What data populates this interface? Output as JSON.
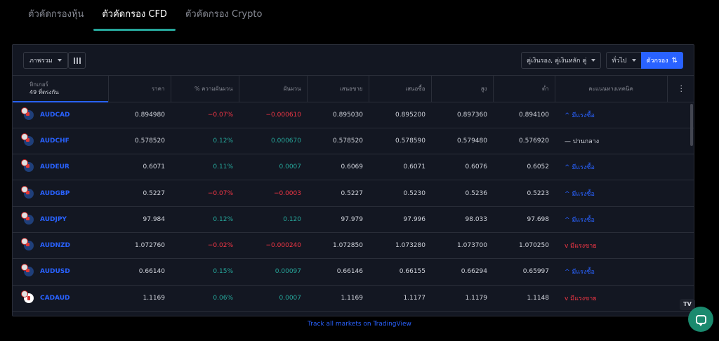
{
  "tabs": [
    {
      "label": "ตัวคัดกรองหุ้น",
      "active": false
    },
    {
      "label": "ตัวคัดกรอง CFD",
      "active": true
    },
    {
      "label": "ตัวคัดกรอง Crypto",
      "active": false
    }
  ],
  "toolbar": {
    "view_select": "ภาพรวม",
    "pair_select": "คู่เงินรอง, คู่เงินหลัก คู่",
    "general_select": "ทั่วไป",
    "filter_label": "ตัวกรอง"
  },
  "table": {
    "headers": {
      "ticker_line1": "ทิกเกอร์",
      "ticker_line2": "49 ที่ตรงกัน",
      "price": "ราคา",
      "change_pct": "% ความผันผวน",
      "change": "ผันผวน",
      "bid": "เสนอขาย",
      "ask": "เสนอซื้อ",
      "high": "สูง",
      "low": "ต่ำ",
      "technical": "คะแนนทางเทคนิค"
    },
    "rows": [
      {
        "ticker": "AUDCAD",
        "flag": "au",
        "price": "0.894980",
        "change_pct": "−0.07%",
        "change": "−0.000610",
        "dir": "neg",
        "bid": "0.895030",
        "ask": "0.895200",
        "high": "0.897360",
        "low": "0.894100",
        "rating": "^ มีแรงซื้อ",
        "rating_type": "buy"
      },
      {
        "ticker": "AUDCHF",
        "flag": "au",
        "price": "0.578520",
        "change_pct": "0.12%",
        "change": "0.000670",
        "dir": "pos",
        "bid": "0.578520",
        "ask": "0.578590",
        "high": "0.579480",
        "low": "0.576920",
        "rating": "— ปานกลาง",
        "rating_type": "neutral"
      },
      {
        "ticker": "AUDEUR",
        "flag": "au",
        "price": "0.6071",
        "change_pct": "0.11%",
        "change": "0.0007",
        "dir": "pos",
        "bid": "0.6069",
        "ask": "0.6071",
        "high": "0.6076",
        "low": "0.6052",
        "rating": "^ มีแรงซื้อ",
        "rating_type": "buy"
      },
      {
        "ticker": "AUDGBP",
        "flag": "au",
        "price": "0.5227",
        "change_pct": "−0.07%",
        "change": "−0.0003",
        "dir": "neg",
        "bid": "0.5227",
        "ask": "0.5230",
        "high": "0.5236",
        "low": "0.5223",
        "rating": "^ มีแรงซื้อ",
        "rating_type": "buy"
      },
      {
        "ticker": "AUDJPY",
        "flag": "au",
        "price": "97.984",
        "change_pct": "0.12%",
        "change": "0.120",
        "dir": "pos",
        "bid": "97.979",
        "ask": "97.996",
        "high": "98.033",
        "low": "97.698",
        "rating": "^ มีแรงซื้อ",
        "rating_type": "buy"
      },
      {
        "ticker": "AUDNZD",
        "flag": "au",
        "price": "1.072760",
        "change_pct": "−0.02%",
        "change": "−0.000240",
        "dir": "neg",
        "bid": "1.072850",
        "ask": "1.073280",
        "high": "1.073700",
        "low": "1.070250",
        "rating": "v มีแรงขาย",
        "rating_type": "sell"
      },
      {
        "ticker": "AUDUSD",
        "flag": "au",
        "price": "0.66140",
        "change_pct": "0.15%",
        "change": "0.00097",
        "dir": "pos",
        "bid": "0.66146",
        "ask": "0.66155",
        "high": "0.66294",
        "low": "0.65997",
        "rating": "^ มีแรงซื้อ",
        "rating_type": "buy"
      },
      {
        "ticker": "CADAUD",
        "flag": "ca",
        "price": "1.1169",
        "change_pct": "0.06%",
        "change": "0.0007",
        "dir": "pos",
        "bid": "1.1169",
        "ask": "1.1177",
        "high": "1.1179",
        "low": "1.1148",
        "rating": "v มีแรงขาย",
        "rating_type": "sell"
      }
    ]
  },
  "footer": {
    "track_link": "Track all markets on TradingView",
    "logo_text": "TV"
  },
  "colors": {
    "accent": "#2962ff",
    "positive": "#26a69a",
    "negative": "#f23645",
    "tab_underline": "#26a69a"
  }
}
